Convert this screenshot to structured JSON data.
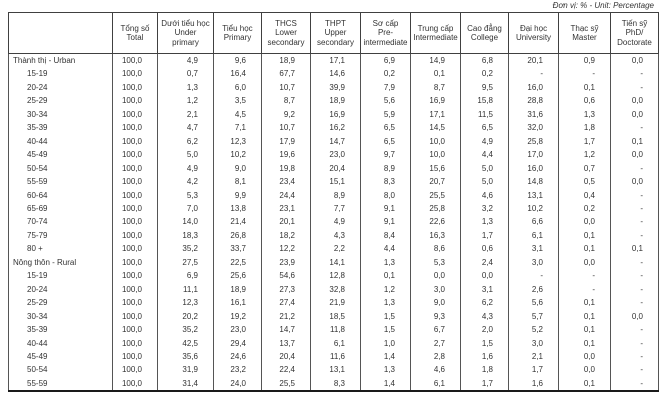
{
  "unit_note": "Đơn vị: % - Unit: Percentage",
  "colors": {
    "text": "#333333",
    "border": "#404040",
    "background": "#ffffff"
  },
  "table": {
    "row_label_header": "",
    "columns": [
      {
        "lines": "Tổng số\nTotal"
      },
      {
        "lines": "Dưới tiểu học\nUnder\nprimary"
      },
      {
        "lines": "Tiểu học\nPrimary"
      },
      {
        "lines": "THCS\nLower\nsecondary"
      },
      {
        "lines": "THPT\nUpper\nsecondary"
      },
      {
        "lines": "Sơ cấp\nPre-\nintermediate"
      },
      {
        "lines": "Trung cấp\nIntermediate"
      },
      {
        "lines": "Cao đẳng\nCollege"
      },
      {
        "lines": "Đại học\nUniversity"
      },
      {
        "lines": "Thạc sỹ\nMaster"
      },
      {
        "lines": "Tiến sỹ\nPhD/\nDoctorate"
      }
    ],
    "rows": [
      {
        "label": "Thành thị - Urban",
        "section": true,
        "values": [
          "100,0",
          "4,9",
          "9,6",
          "18,9",
          "17,1",
          "6,9",
          "14,9",
          "6,8",
          "20,1",
          "0,9",
          "0,0"
        ]
      },
      {
        "label": "15-19",
        "section": false,
        "values": [
          "100,0",
          "0,7",
          "16,4",
          "67,7",
          "14,6",
          "0,2",
          "0,1",
          "0,2",
          "-",
          "-",
          "-"
        ]
      },
      {
        "label": "20-24",
        "section": false,
        "values": [
          "100,0",
          "1,3",
          "6,0",
          "10,7",
          "39,9",
          "7,9",
          "8,7",
          "9,5",
          "16,0",
          "0,1",
          "-"
        ]
      },
      {
        "label": "25-29",
        "section": false,
        "values": [
          "100,0",
          "1,2",
          "3,5",
          "8,7",
          "18,9",
          "5,6",
          "16,9",
          "15,8",
          "28,8",
          "0,6",
          "0,0"
        ]
      },
      {
        "label": "30-34",
        "section": false,
        "values": [
          "100,0",
          "2,1",
          "4,5",
          "9,2",
          "16,9",
          "5,9",
          "17,1",
          "11,5",
          "31,6",
          "1,3",
          "0,0"
        ]
      },
      {
        "label": "35-39",
        "section": false,
        "values": [
          "100,0",
          "4,7",
          "7,1",
          "10,7",
          "16,2",
          "6,5",
          "14,5",
          "6,5",
          "32,0",
          "1,8",
          "-"
        ]
      },
      {
        "label": "40-44",
        "section": false,
        "values": [
          "100,0",
          "6,2",
          "12,3",
          "17,9",
          "14,7",
          "6,5",
          "10,0",
          "4,9",
          "25,8",
          "1,7",
          "0,1"
        ]
      },
      {
        "label": "45-49",
        "section": false,
        "values": [
          "100,0",
          "5,0",
          "10,2",
          "19,6",
          "23,0",
          "9,7",
          "10,0",
          "4,4",
          "17,0",
          "1,2",
          "0,0"
        ]
      },
      {
        "label": "50-54",
        "section": false,
        "values": [
          "100,0",
          "4,9",
          "9,0",
          "19,8",
          "20,4",
          "8,9",
          "15,6",
          "5,0",
          "16,0",
          "0,7",
          "-"
        ]
      },
      {
        "label": "55-59",
        "section": false,
        "values": [
          "100,0",
          "4,2",
          "8,1",
          "23,4",
          "15,1",
          "8,3",
          "20,7",
          "5,0",
          "14,8",
          "0,5",
          "0,0"
        ]
      },
      {
        "label": "60-64",
        "section": false,
        "values": [
          "100,0",
          "5,3",
          "9,9",
          "24,4",
          "8,9",
          "8,0",
          "25,5",
          "4,6",
          "13,1",
          "0,4",
          "-"
        ]
      },
      {
        "label": "65-69",
        "section": false,
        "values": [
          "100,0",
          "7,0",
          "13,8",
          "23,1",
          "7,7",
          "9,1",
          "25,8",
          "3,2",
          "10,2",
          "0,2",
          "-"
        ]
      },
      {
        "label": "70-74",
        "section": false,
        "values": [
          "100,0",
          "14,0",
          "21,4",
          "20,1",
          "4,9",
          "9,1",
          "22,6",
          "1,3",
          "6,6",
          "0,0",
          "-"
        ]
      },
      {
        "label": "75-79",
        "section": false,
        "values": [
          "100,0",
          "18,3",
          "26,8",
          "18,2",
          "4,3",
          "8,4",
          "16,3",
          "1,7",
          "6,1",
          "0,1",
          "-"
        ]
      },
      {
        "label": "80 +",
        "section": false,
        "values": [
          "100,0",
          "35,2",
          "33,7",
          "12,2",
          "2,2",
          "4,4",
          "8,6",
          "0,6",
          "3,1",
          "0,1",
          "0,1"
        ]
      },
      {
        "label": "Nông thôn - Rural",
        "section": true,
        "values": [
          "100,0",
          "27,5",
          "22,5",
          "23,9",
          "14,1",
          "1,3",
          "5,3",
          "2,4",
          "3,0",
          "0,0",
          "-"
        ]
      },
      {
        "label": "15-19",
        "section": false,
        "values": [
          "100,0",
          "6,9",
          "25,6",
          "54,6",
          "12,8",
          "0,1",
          "0,0",
          "0,0",
          "-",
          "-",
          "-"
        ]
      },
      {
        "label": "20-24",
        "section": false,
        "values": [
          "100,0",
          "11,1",
          "18,9",
          "27,3",
          "32,8",
          "1,2",
          "3,0",
          "3,1",
          "2,6",
          "-",
          "-"
        ]
      },
      {
        "label": "25-29",
        "section": false,
        "values": [
          "100,0",
          "12,3",
          "16,1",
          "27,4",
          "21,9",
          "1,3",
          "9,0",
          "6,2",
          "5,6",
          "0,1",
          "-"
        ]
      },
      {
        "label": "30-34",
        "section": false,
        "values": [
          "100,0",
          "20,2",
          "19,2",
          "21,2",
          "18,5",
          "1,5",
          "9,3",
          "4,3",
          "5,7",
          "0,1",
          "0,0"
        ]
      },
      {
        "label": "35-39",
        "section": false,
        "values": [
          "100,0",
          "35,2",
          "23,0",
          "14,7",
          "11,8",
          "1,5",
          "6,7",
          "2,0",
          "5,2",
          "0,1",
          "-"
        ]
      },
      {
        "label": "40-44",
        "section": false,
        "values": [
          "100,0",
          "42,5",
          "29,4",
          "13,7",
          "6,1",
          "1,0",
          "2,7",
          "1,5",
          "3,0",
          "0,1",
          "-"
        ]
      },
      {
        "label": "45-49",
        "section": false,
        "values": [
          "100,0",
          "35,6",
          "24,6",
          "20,4",
          "11,6",
          "1,4",
          "2,8",
          "1,6",
          "2,1",
          "0,0",
          "-"
        ]
      },
      {
        "label": "50-54",
        "section": false,
        "values": [
          "100,0",
          "31,9",
          "23,2",
          "22,4",
          "13,1",
          "1,3",
          "4,6",
          "1,8",
          "1,7",
          "0,0",
          "-"
        ]
      },
      {
        "label": "55-59",
        "section": false,
        "values": [
          "100,0",
          "31,4",
          "24,0",
          "25,5",
          "8,3",
          "1,4",
          "6,1",
          "1,7",
          "1,6",
          "0,1",
          "-"
        ]
      }
    ]
  }
}
